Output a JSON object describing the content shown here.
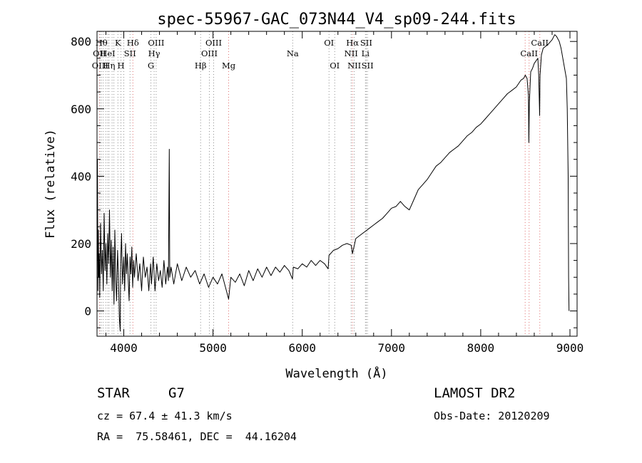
{
  "chart_data": {
    "type": "line",
    "title": "spec-55967-GAC_073N44_V4_sp09-244.fits",
    "xlabel": "Wavelength (Å)",
    "ylabel": "Flux (relative)",
    "xlim": [
      3700,
      9080
    ],
    "ylim": [
      -75,
      830
    ],
    "x_ticks": [
      4000,
      5000,
      6000,
      7000,
      8000,
      9000
    ],
    "y_ticks": [
      0,
      200,
      400,
      600,
      800
    ],
    "grid": false,
    "series": [
      {
        "values": [
          [
            3700,
            120
          ],
          [
            3705,
            450
          ],
          [
            3710,
            60
          ],
          [
            3715,
            240
          ],
          [
            3720,
            100
          ],
          [
            3725,
            170
          ],
          [
            3730,
            40
          ],
          [
            3740,
            260
          ],
          [
            3750,
            110
          ],
          [
            3760,
            180
          ],
          [
            3770,
            60
          ],
          [
            3780,
            290
          ],
          [
            3790,
            120
          ],
          [
            3800,
            200
          ],
          [
            3810,
            80
          ],
          [
            3820,
            230
          ],
          [
            3830,
            140
          ],
          [
            3840,
            300
          ],
          [
            3850,
            100
          ],
          [
            3860,
            210
          ],
          [
            3870,
            60
          ],
          [
            3880,
            190
          ],
          [
            3890,
            20
          ],
          [
            3900,
            240
          ],
          [
            3910,
            90
          ],
          [
            3920,
            30
          ],
          [
            3930,
            180
          ],
          [
            3940,
            110
          ],
          [
            3950,
            -20
          ],
          [
            3960,
            -60
          ],
          [
            3965,
            140
          ],
          [
            3975,
            230
          ],
          [
            3985,
            80
          ],
          [
            4000,
            160
          ],
          [
            4010,
            60
          ],
          [
            4020,
            200
          ],
          [
            4030,
            110
          ],
          [
            4040,
            170
          ],
          [
            4050,
            90
          ],
          [
            4060,
            30
          ],
          [
            4070,
            160
          ],
          [
            4080,
            110
          ],
          [
            4090,
            190
          ],
          [
            4100,
            70
          ],
          [
            4110,
            150
          ],
          [
            4120,
            100
          ],
          [
            4140,
            170
          ],
          [
            4160,
            90
          ],
          [
            4180,
            140
          ],
          [
            4200,
            60
          ],
          [
            4220,
            160
          ],
          [
            4240,
            100
          ],
          [
            4260,
            130
          ],
          [
            4280,
            60
          ],
          [
            4300,
            140
          ],
          [
            4310,
            80
          ],
          [
            4330,
            160
          ],
          [
            4350,
            60
          ],
          [
            4370,
            140
          ],
          [
            4390,
            90
          ],
          [
            4410,
            120
          ],
          [
            4430,
            70
          ],
          [
            4450,
            150
          ],
          [
            4470,
            80
          ],
          [
            4490,
            130
          ],
          [
            4500,
            90
          ],
          [
            4510,
            480
          ],
          [
            4515,
            100
          ],
          [
            4530,
            130
          ],
          [
            4560,
            80
          ],
          [
            4600,
            140
          ],
          [
            4650,
            90
          ],
          [
            4700,
            130
          ],
          [
            4750,
            100
          ],
          [
            4800,
            120
          ],
          [
            4850,
            80
          ],
          [
            4900,
            110
          ],
          [
            4950,
            70
          ],
          [
            5000,
            100
          ],
          [
            5050,
            80
          ],
          [
            5100,
            110
          ],
          [
            5150,
            60
          ],
          [
            5175,
            35
          ],
          [
            5200,
            100
          ],
          [
            5250,
            85
          ],
          [
            5300,
            110
          ],
          [
            5350,
            75
          ],
          [
            5400,
            120
          ],
          [
            5450,
            90
          ],
          [
            5500,
            125
          ],
          [
            5550,
            100
          ],
          [
            5600,
            130
          ],
          [
            5650,
            105
          ],
          [
            5700,
            130
          ],
          [
            5750,
            115
          ],
          [
            5800,
            135
          ],
          [
            5850,
            120
          ],
          [
            5890,
            95
          ],
          [
            5900,
            130
          ],
          [
            5950,
            125
          ],
          [
            6000,
            140
          ],
          [
            6050,
            130
          ],
          [
            6100,
            150
          ],
          [
            6150,
            135
          ],
          [
            6200,
            150
          ],
          [
            6250,
            140
          ],
          [
            6290,
            125
          ],
          [
            6300,
            165
          ],
          [
            6350,
            180
          ],
          [
            6400,
            185
          ],
          [
            6450,
            195
          ],
          [
            6500,
            200
          ],
          [
            6550,
            195
          ],
          [
            6563,
            170
          ],
          [
            6600,
            215
          ],
          [
            6650,
            225
          ],
          [
            6700,
            235
          ],
          [
            6750,
            245
          ],
          [
            6800,
            255
          ],
          [
            6850,
            265
          ],
          [
            6900,
            275
          ],
          [
            6950,
            290
          ],
          [
            7000,
            305
          ],
          [
            7050,
            310
          ],
          [
            7100,
            325
          ],
          [
            7150,
            310
          ],
          [
            7200,
            300
          ],
          [
            7250,
            330
          ],
          [
            7300,
            360
          ],
          [
            7350,
            375
          ],
          [
            7400,
            390
          ],
          [
            7450,
            410
          ],
          [
            7500,
            430
          ],
          [
            7550,
            440
          ],
          [
            7600,
            455
          ],
          [
            7650,
            470
          ],
          [
            7700,
            480
          ],
          [
            7750,
            490
          ],
          [
            7800,
            505
          ],
          [
            7850,
            520
          ],
          [
            7900,
            530
          ],
          [
            7950,
            545
          ],
          [
            8000,
            555
          ],
          [
            8050,
            570
          ],
          [
            8100,
            585
          ],
          [
            8150,
            600
          ],
          [
            8200,
            615
          ],
          [
            8250,
            630
          ],
          [
            8300,
            645
          ],
          [
            8350,
            655
          ],
          [
            8400,
            665
          ],
          [
            8450,
            685
          ],
          [
            8480,
            690
          ],
          [
            8500,
            700
          ],
          [
            8520,
            690
          ],
          [
            8535,
            640
          ],
          [
            8540,
            500
          ],
          [
            8545,
            620
          ],
          [
            8560,
            710
          ],
          [
            8580,
            720
          ],
          [
            8600,
            735
          ],
          [
            8640,
            750
          ],
          [
            8650,
            700
          ],
          [
            8660,
            580
          ],
          [
            8665,
            700
          ],
          [
            8680,
            760
          ],
          [
            8700,
            780
          ],
          [
            8750,
            790
          ],
          [
            8800,
            805
          ],
          [
            8830,
            820
          ],
          [
            8850,
            815
          ],
          [
            8880,
            800
          ],
          [
            8900,
            780
          ],
          [
            8920,
            750
          ],
          [
            8940,
            720
          ],
          [
            8960,
            690
          ],
          [
            8970,
            600
          ],
          [
            8980,
            400
          ],
          [
            8985,
            100
          ],
          [
            8990,
            0
          ]
        ]
      }
    ],
    "lines": [
      {
        "x": 3727,
        "color": "#e07070",
        "labels": [
          {
            "text": "OII",
            "row": 2
          }
        ]
      },
      {
        "x": 3734,
        "color": "#909090",
        "labels": [
          {
            "text": "OIII",
            "row": 3
          }
        ]
      },
      {
        "x": 3750,
        "color": "#909090",
        "labels": [
          {
            "text": "Hθ",
            "row": 1
          }
        ]
      },
      {
        "x": 3771,
        "color": "#909090",
        "labels": []
      },
      {
        "x": 3798,
        "color": "#909090",
        "labels": []
      },
      {
        "x": 3820,
        "color": "#909090",
        "labels": [
          {
            "text": "HeI",
            "row": 2
          }
        ]
      },
      {
        "x": 3835,
        "color": "#909090",
        "labels": [
          {
            "text": "Hη",
            "row": 3
          }
        ]
      },
      {
        "x": 3869,
        "color": "#909090",
        "labels": []
      },
      {
        "x": 3889,
        "color": "#909090",
        "labels": []
      },
      {
        "x": 3934,
        "color": "#909090",
        "labels": [
          {
            "text": "K",
            "row": 1
          }
        ]
      },
      {
        "x": 3968,
        "color": "#909090",
        "labels": [
          {
            "text": "H",
            "row": 3
          }
        ]
      },
      {
        "x": 4000,
        "color": "#909090",
        "labels": []
      },
      {
        "x": 4070,
        "color": "#909090",
        "labels": [
          {
            "text": "SII",
            "row": 2
          }
        ]
      },
      {
        "x": 4102,
        "color": "#e07070",
        "labels": [
          {
            "text": "Hδ",
            "row": 1
          }
        ]
      },
      {
        "x": 4304,
        "color": "#909090",
        "labels": [
          {
            "text": "G",
            "row": 3
          }
        ]
      },
      {
        "x": 4340,
        "color": "#909090",
        "labels": [
          {
            "text": "Hγ",
            "row": 2
          }
        ]
      },
      {
        "x": 4363,
        "color": "#909090",
        "labels": [
          {
            "text": "OIII",
            "row": 1
          }
        ]
      },
      {
        "x": 4861,
        "color": "#909090",
        "labels": [
          {
            "text": "Hβ",
            "row": 3
          }
        ]
      },
      {
        "x": 4959,
        "color": "#909090",
        "labels": [
          {
            "text": "OIII",
            "row": 2
          }
        ]
      },
      {
        "x": 5007,
        "color": "#909090",
        "labels": [
          {
            "text": "OIII",
            "row": 1
          }
        ]
      },
      {
        "x": 5175,
        "color": "#e07070",
        "labels": [
          {
            "text": "Mg",
            "row": 3
          }
        ]
      },
      {
        "x": 5893,
        "color": "#909090",
        "labels": [
          {
            "text": "Na",
            "row": 2
          }
        ]
      },
      {
        "x": 6300,
        "color": "#909090",
        "labels": [
          {
            "text": "OI",
            "row": 1
          }
        ]
      },
      {
        "x": 6364,
        "color": "#909090",
        "labels": [
          {
            "text": "OI",
            "row": 3
          }
        ]
      },
      {
        "x": 6548,
        "color": "#909090",
        "labels": [
          {
            "text": "NII",
            "row": 2
          }
        ]
      },
      {
        "x": 6563,
        "color": "#e07070",
        "labels": [
          {
            "text": "Hα",
            "row": 1
          }
        ]
      },
      {
        "x": 6583,
        "color": "#909090",
        "labels": [
          {
            "text": "NII",
            "row": 3
          }
        ]
      },
      {
        "x": 6708,
        "color": "#909090",
        "labels": [
          {
            "text": "Li",
            "row": 2
          }
        ]
      },
      {
        "x": 6717,
        "color": "#909090",
        "labels": [
          {
            "text": "SII",
            "row": 1
          }
        ]
      },
      {
        "x": 6731,
        "color": "#909090",
        "labels": [
          {
            "text": "SII",
            "row": 3
          }
        ]
      },
      {
        "x": 8498,
        "color": "#e07070",
        "labels": []
      },
      {
        "x": 8542,
        "color": "#e07070",
        "labels": [
          {
            "text": "CaII",
            "row": 2
          }
        ]
      },
      {
        "x": 8662,
        "color": "#e07070",
        "labels": [
          {
            "text": "CaII",
            "row": 1
          }
        ]
      }
    ]
  },
  "info": {
    "class_label": "STAR",
    "subclass": "G7",
    "survey": "LAMOST DR2",
    "cz": "cz = 67.4 ± 41.3 km/s",
    "obs_date": "Obs-Date: 20120209",
    "coords": "RA =  75.58461, DEC =  44.16204"
  }
}
